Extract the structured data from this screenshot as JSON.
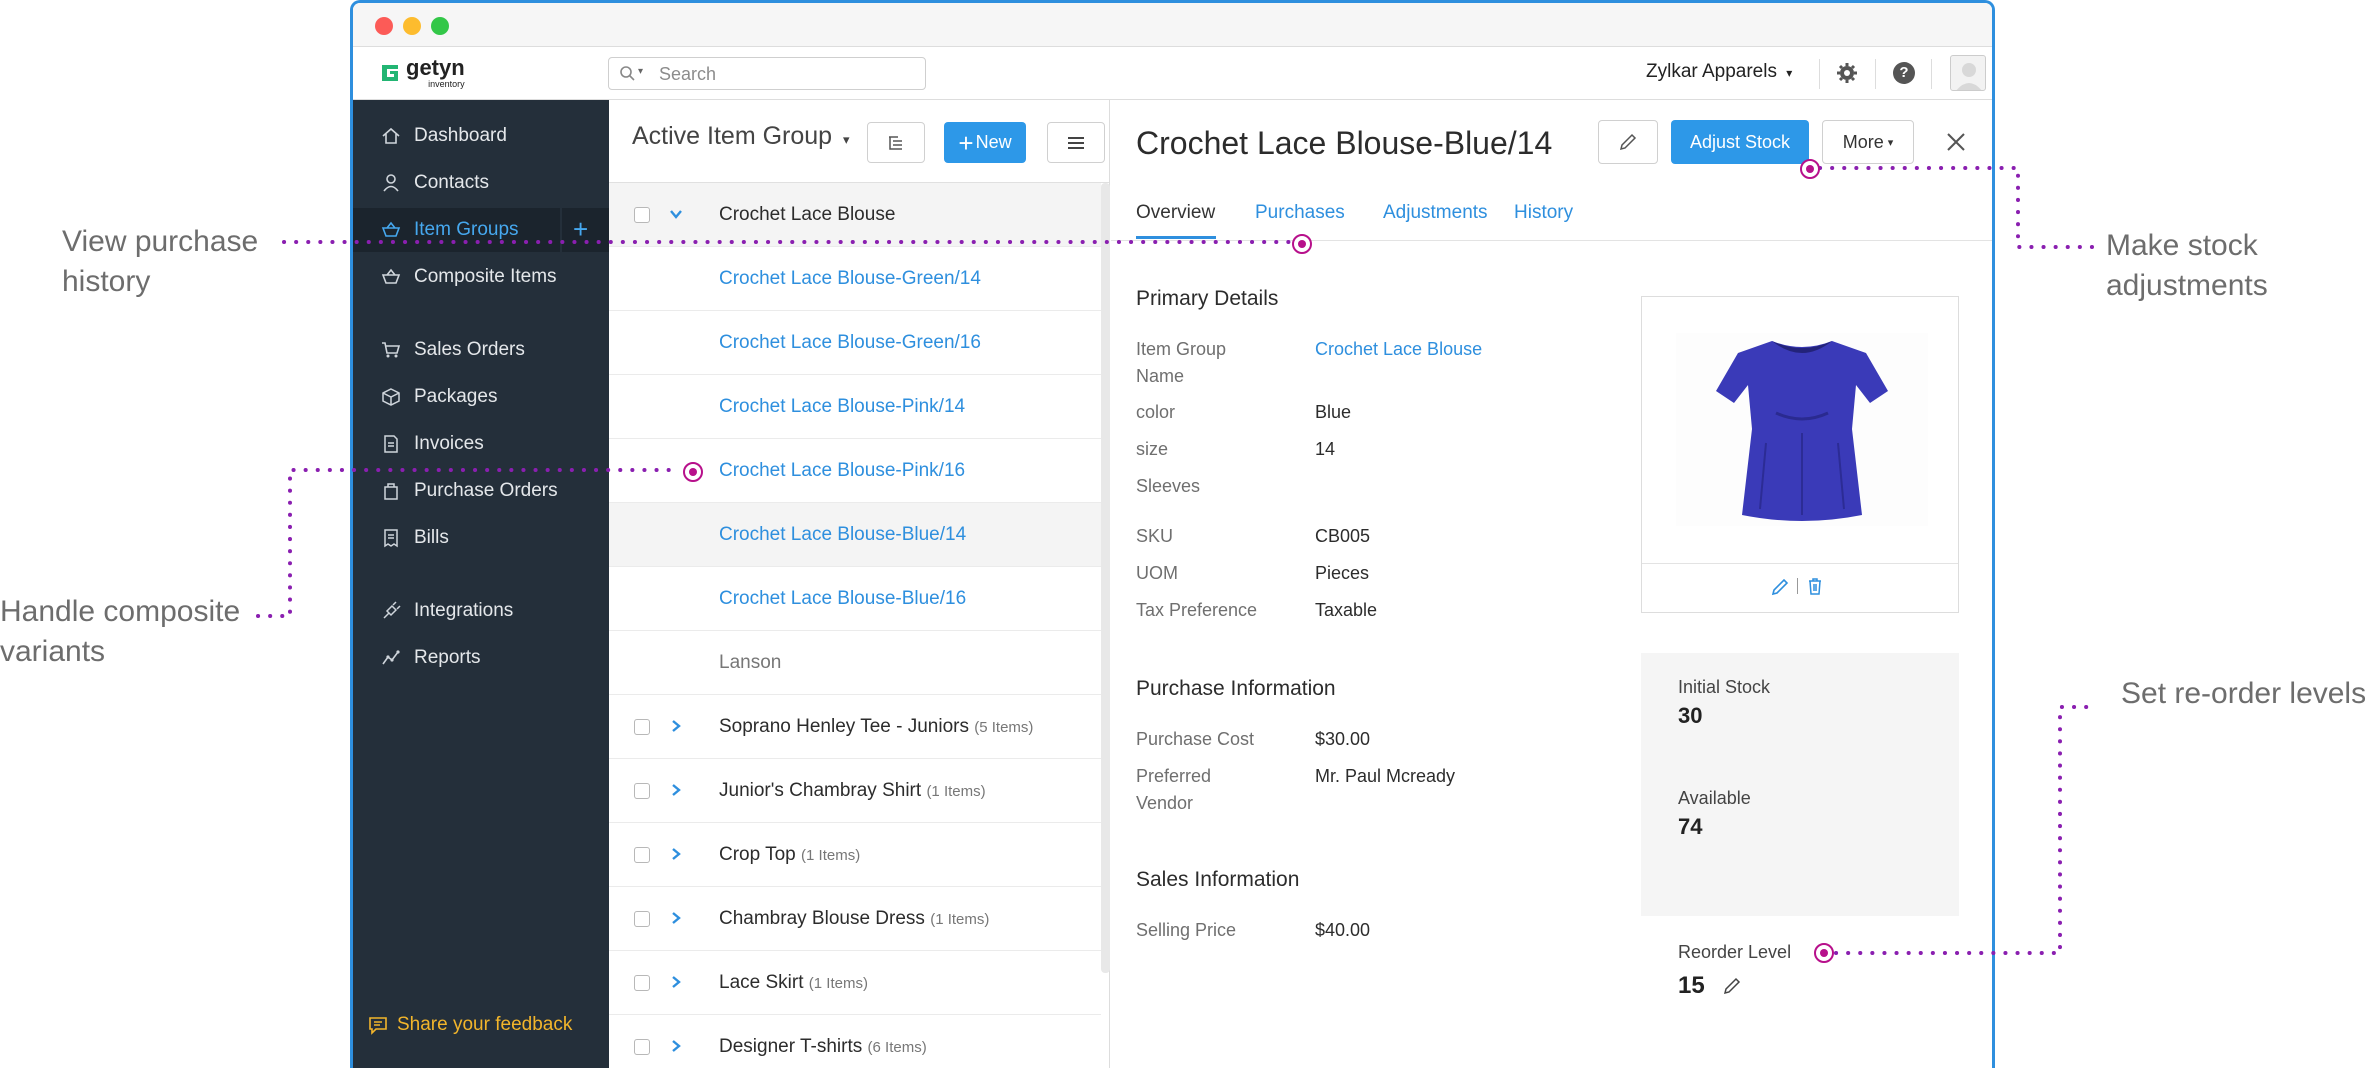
{
  "topbar": {
    "logo_name": "getyn",
    "logo_sub": "inventory",
    "search_placeholder": "Search",
    "org_name": "Zylkar Apparels"
  },
  "sidebar": {
    "items": [
      {
        "label": "Dashboard",
        "icon": "home-icon"
      },
      {
        "label": "Contacts",
        "icon": "person-icon"
      },
      {
        "label": "Item Groups",
        "icon": "basket-icon",
        "active": true
      },
      {
        "label": "Composite Items",
        "icon": "basket-icon"
      },
      {
        "label": "Sales Orders",
        "icon": "cart-icon"
      },
      {
        "label": "Packages",
        "icon": "box-icon"
      },
      {
        "label": "Invoices",
        "icon": "document-icon"
      },
      {
        "label": "Purchase Orders",
        "icon": "bag-icon"
      },
      {
        "label": "Bills",
        "icon": "receipt-icon"
      },
      {
        "label": "Integrations",
        "icon": "plug-icon"
      },
      {
        "label": "Reports",
        "icon": "chart-icon"
      }
    ],
    "feedback_label": "Share your feedback"
  },
  "list": {
    "title": "Active Item Group",
    "new_label": "New",
    "rows": [
      {
        "label": "Crochet Lace Blouse",
        "kind": "group-open"
      },
      {
        "label": "Crochet Lace Blouse-Green/14",
        "kind": "variant"
      },
      {
        "label": "Crochet Lace Blouse-Green/16",
        "kind": "variant"
      },
      {
        "label": "Crochet Lace Blouse-Pink/14",
        "kind": "variant"
      },
      {
        "label": "Crochet Lace Blouse-Pink/16",
        "kind": "variant"
      },
      {
        "label": "Crochet Lace Blouse-Blue/14",
        "kind": "variant-selected"
      },
      {
        "label": "Crochet Lace Blouse-Blue/16",
        "kind": "variant"
      },
      {
        "label": "Lanson",
        "kind": "muted"
      },
      {
        "label": "Soprano Henley Tee - Juniors",
        "count": "(5 Items)",
        "kind": "group"
      },
      {
        "label": "Junior's Chambray Shirt",
        "count": "(1 Items)",
        "kind": "group"
      },
      {
        "label": "Crop Top",
        "count": "(1 Items)",
        "kind": "group"
      },
      {
        "label": "Chambray Blouse Dress",
        "count": "(1 Items)",
        "kind": "group"
      },
      {
        "label": "Lace Skirt",
        "count": "(1 Items)",
        "kind": "group"
      },
      {
        "label": "Designer T-shirts",
        "count": "(6 Items)",
        "kind": "group"
      }
    ]
  },
  "detail": {
    "title": "Crochet Lace Blouse-Blue/14",
    "adjust_stock_label": "Adjust Stock",
    "more_label": "More",
    "tabs": [
      "Overview",
      "Purchases",
      "Adjustments",
      "History"
    ],
    "primary": {
      "heading": "Primary Details",
      "item_group_label_1": "Item Group",
      "item_group_label_2": "Name",
      "item_group_value": "Crochet Lace Blouse",
      "color_label": "color",
      "color_value": "Blue",
      "size_label": "size",
      "size_value": "14",
      "sleeves_label": "Sleeves",
      "sku_label": "SKU",
      "sku_value": "CB005",
      "uom_label": "UOM",
      "uom_value": "Pieces",
      "tax_label": "Tax Preference",
      "tax_value": "Taxable"
    },
    "purchase": {
      "heading": "Purchase Information",
      "cost_label": "Purchase Cost",
      "cost_value": "$30.00",
      "vendor_label_1": "Preferred",
      "vendor_label_2": "Vendor",
      "vendor_value": "Mr. Paul Mcready"
    },
    "sales": {
      "heading": "Sales Information",
      "price_label": "Selling Price",
      "price_value": "$40.00"
    },
    "stock": {
      "initial_label": "Initial Stock",
      "initial_value": "30",
      "available_label": "Available",
      "available_value": "74",
      "reorder_label": "Reorder Level",
      "reorder_value": "15"
    }
  },
  "annotations": {
    "view_purchase_1": "View purchase",
    "view_purchase_2": "history",
    "composite_1": "Handle composite",
    "composite_2": "variants",
    "stock_1": "Make stock",
    "stock_2": "adjustments",
    "reorder": "Set re-order levels"
  },
  "colors": {
    "accent": "#2e8fde",
    "sidebar_bg": "#242f3a",
    "annotation_pin": "#b7108b",
    "annotation_dots": "#8a1fb0",
    "feedback": "#f2b52b",
    "product": "#3a3ab8"
  }
}
